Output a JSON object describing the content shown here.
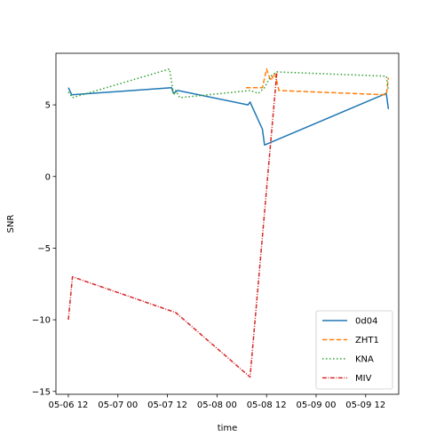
{
  "chart_data": {
    "type": "line",
    "title": "",
    "xlabel": "time",
    "ylabel": "SNR",
    "x_is_time": true,
    "xlim": [
      "2024-05-06 09:00",
      "2024-05-09 20:00"
    ],
    "ylim": [
      -15.2,
      8.6
    ],
    "x_ticks": [
      {
        "t": "2024-05-06 12:00",
        "label": "05-06 12"
      },
      {
        "t": "2024-05-07 00:00",
        "label": "05-07 00"
      },
      {
        "t": "2024-05-07 12:00",
        "label": "05-07 12"
      },
      {
        "t": "2024-05-08 00:00",
        "label": "05-08 00"
      },
      {
        "t": "2024-05-08 12:00",
        "label": "05-08 12"
      },
      {
        "t": "2024-05-09 00:00",
        "label": "05-09 00"
      },
      {
        "t": "2024-05-09 12:00",
        "label": "05-09 12"
      }
    ],
    "y_ticks": [
      {
        "v": -15,
        "label": "−15"
      },
      {
        "v": -10,
        "label": "−10"
      },
      {
        "v": -5,
        "label": "−5"
      },
      {
        "v": 0,
        "label": "0"
      },
      {
        "v": 5,
        "label": "5"
      }
    ],
    "grid": false,
    "legend_position": "lower-right",
    "series": [
      {
        "name": "0d04",
        "color": "#1f77b4",
        "dash": "solid",
        "points": [
          [
            "2024-05-06 12:00",
            6.2
          ],
          [
            "2024-05-06 12:50",
            5.7
          ],
          [
            "2024-05-07 13:00",
            6.2
          ],
          [
            "2024-05-07 13:30",
            5.8
          ],
          [
            "2024-05-07 14:30",
            6.0
          ],
          [
            "2024-05-08 07:30",
            5.0
          ],
          [
            "2024-05-08 08:00",
            5.2
          ],
          [
            "2024-05-08 11:00",
            3.3
          ],
          [
            "2024-05-08 11:30",
            2.2
          ],
          [
            "2024-05-09 17:00",
            5.8
          ],
          [
            "2024-05-09 17:30",
            4.7
          ]
        ]
      },
      {
        "name": "ZHT1",
        "color": "#ff7f0e",
        "dash": "dashed",
        "points": [
          [
            "2024-05-08 07:00",
            6.2
          ],
          [
            "2024-05-08 11:00",
            6.2
          ],
          [
            "2024-05-08 12:00",
            7.5
          ],
          [
            "2024-05-08 13:00",
            6.7
          ],
          [
            "2024-05-08 14:00",
            7.2
          ],
          [
            "2024-05-08 15:00",
            6.0
          ],
          [
            "2024-05-09 17:00",
            5.7
          ],
          [
            "2024-05-09 17:30",
            6.9
          ]
        ]
      },
      {
        "name": "KNA",
        "color": "#2ca02c",
        "dash": "dotted",
        "points": [
          [
            "2024-05-06 12:00",
            5.9
          ],
          [
            "2024-05-06 13:00",
            5.5
          ],
          [
            "2024-05-07 12:30",
            7.5
          ],
          [
            "2024-05-07 13:30",
            5.7
          ],
          [
            "2024-05-07 14:00",
            6.0
          ],
          [
            "2024-05-07 15:00",
            5.5
          ],
          [
            "2024-05-08 08:00",
            6.0
          ],
          [
            "2024-05-08 10:00",
            5.8
          ],
          [
            "2024-05-08 11:30",
            6.2
          ],
          [
            "2024-05-08 13:00",
            7.0
          ],
          [
            "2024-05-08 14:30",
            7.3
          ],
          [
            "2024-05-09 17:00",
            7.0
          ],
          [
            "2024-05-09 17:30",
            6.0
          ]
        ]
      },
      {
        "name": "MIV",
        "color": "#d62728",
        "dash": "dashdot",
        "points": [
          [
            "2024-05-06 12:00",
            -10.0
          ],
          [
            "2024-05-06 13:00",
            -7.0
          ],
          [
            "2024-05-07 14:00",
            -9.5
          ],
          [
            "2024-05-08 08:00",
            -14.0
          ],
          [
            "2024-05-08 14:30",
            7.3
          ]
        ]
      }
    ]
  }
}
